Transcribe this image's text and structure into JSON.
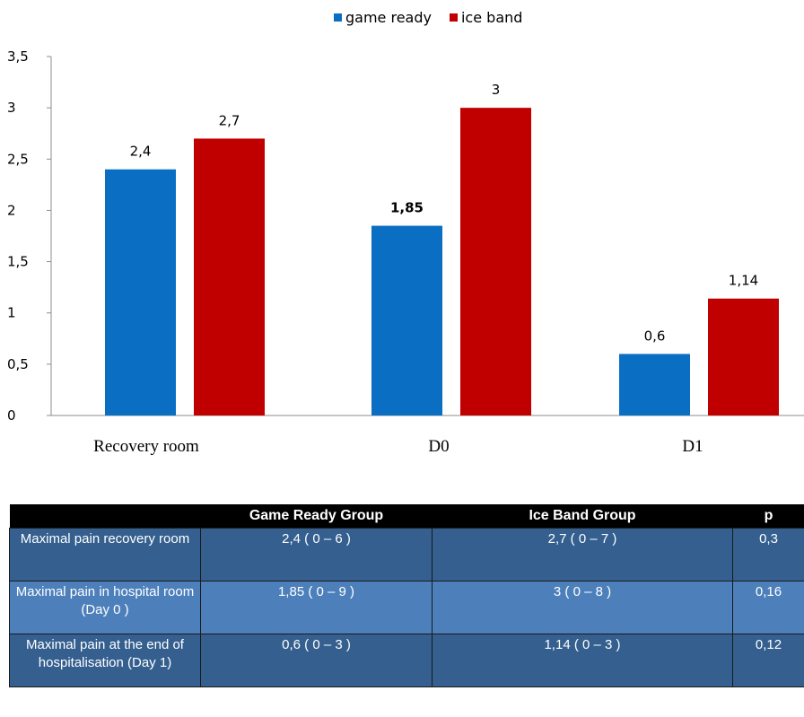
{
  "chart_data": {
    "type": "bar",
    "categories": [
      "Recovery room",
      "D0",
      "D1"
    ],
    "series": [
      {
        "name": "game ready",
        "values": [
          2.4,
          1.85,
          0.6
        ],
        "labels": [
          "2,4",
          "1,85",
          "0,6"
        ],
        "color": "#0a6fc2"
      },
      {
        "name": "ice band",
        "values": [
          2.7,
          3,
          1.14
        ],
        "labels": [
          "2,7",
          "3",
          "1,14"
        ],
        "color": "#c00000"
      }
    ],
    "ylim": [
      0,
      3.5
    ],
    "yticks": [
      0,
      0.5,
      1,
      1.5,
      2,
      2.5,
      3,
      3.5
    ],
    "ytick_labels": [
      "0",
      "0,5",
      "1",
      "1,5",
      "2",
      "2,5",
      "3",
      "3,5"
    ],
    "grid": false,
    "legend_position": "top-center"
  },
  "table": {
    "headers": [
      "",
      "Game Ready Group",
      "Ice Band Group",
      "p"
    ],
    "rows": [
      [
        "Maximal pain recovery room",
        "2,4 ( 0 – 6 )",
        "2,7 ( 0 – 7 )",
        "0,3"
      ],
      [
        "Maximal pain  in hospital room  (Day 0 )",
        "1,85 ( 0 – 9 )",
        "3 ( 0 – 8 )",
        "0,16"
      ],
      [
        "Maximal pain at the end of hospitalisation (Day 1)",
        "0,6 ( 0 – 3 )",
        "1,14 ( 0 – 3 )",
        "0,12"
      ]
    ]
  }
}
